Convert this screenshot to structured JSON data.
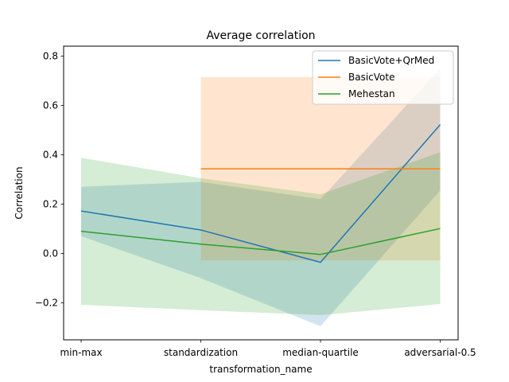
{
  "chart_data": {
    "type": "line",
    "title": "Average correlation",
    "xlabel": "transformation_name",
    "ylabel": "Correlation",
    "categories": [
      "min-max",
      "standardization",
      "median-quartile",
      "adversarial-0.5"
    ],
    "ylim": [
      -0.35,
      0.84
    ],
    "yticks": [
      -0.2,
      0.0,
      0.2,
      0.4,
      0.6,
      0.8
    ],
    "ytick_labels": [
      "−0.2",
      "0.0",
      "0.2",
      "0.4",
      "0.6",
      "0.8"
    ],
    "grid": false,
    "legend_position": "top-right",
    "series": [
      {
        "name": "BasicVote+QrMed",
        "color": "#1f77b4",
        "values": [
          0.172,
          0.095,
          -0.036,
          0.522
        ],
        "band_lower": [
          0.07,
          -0.1,
          -0.295,
          0.255
        ],
        "band_upper": [
          0.27,
          0.29,
          0.22,
          0.75
        ]
      },
      {
        "name": "BasicVote",
        "color": "#ff7f0e",
        "values": [
          null,
          0.343,
          0.343,
          0.343
        ],
        "band_lower": [
          null,
          -0.028,
          -0.028,
          -0.028
        ],
        "band_upper": [
          null,
          0.715,
          0.715,
          0.715
        ]
      },
      {
        "name": "Mehestan",
        "color": "#2ca02c",
        "values": [
          0.09,
          0.038,
          -0.004,
          0.101
        ],
        "band_lower": [
          -0.208,
          -0.23,
          -0.25,
          -0.205
        ],
        "band_upper": [
          0.388,
          0.305,
          0.24,
          0.41
        ]
      }
    ]
  }
}
